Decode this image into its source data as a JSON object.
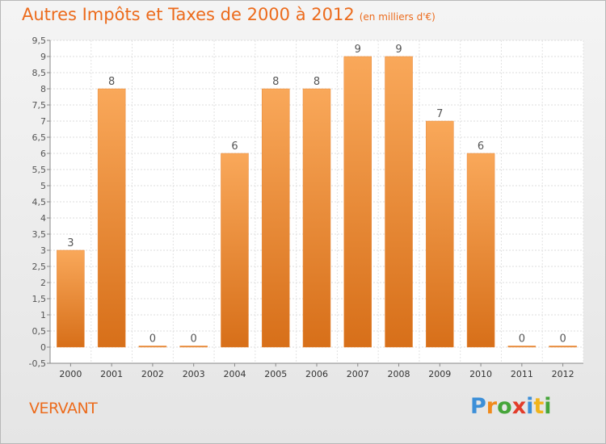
{
  "header": {
    "title": "Autres Impôts et Taxes de 2000 à 2012",
    "unit": "(en milliers d'€)"
  },
  "footer": {
    "place": "VERVANT",
    "logo": "Proxiti"
  },
  "colors": {
    "bar_light": "#f9a85a",
    "bar_dark": "#d76f19",
    "text_orange": "#ec6b1c"
  },
  "chart_data": {
    "type": "bar",
    "categories": [
      "2000",
      "2001",
      "2002",
      "2003",
      "2004",
      "2005",
      "2006",
      "2007",
      "2008",
      "2009",
      "2010",
      "2011",
      "2012"
    ],
    "values": [
      3,
      8,
      0,
      0,
      6,
      8,
      8,
      9,
      9,
      7,
      6,
      0,
      0
    ],
    "data_labels": [
      "3",
      "8",
      "0",
      "0",
      "6",
      "8",
      "8",
      "9",
      "9",
      "7",
      "6",
      "0",
      "0"
    ],
    "y_ticks": [
      "-0,5",
      "0",
      "0,5",
      "1",
      "1,5",
      "2",
      "2,5",
      "3",
      "3,5",
      "4",
      "4,5",
      "5",
      "5,5",
      "6",
      "6,5",
      "7",
      "7,5",
      "8",
      "8,5",
      "9",
      "9,5"
    ],
    "ylim": [
      -0.5,
      9.5
    ],
    "grid": true
  }
}
